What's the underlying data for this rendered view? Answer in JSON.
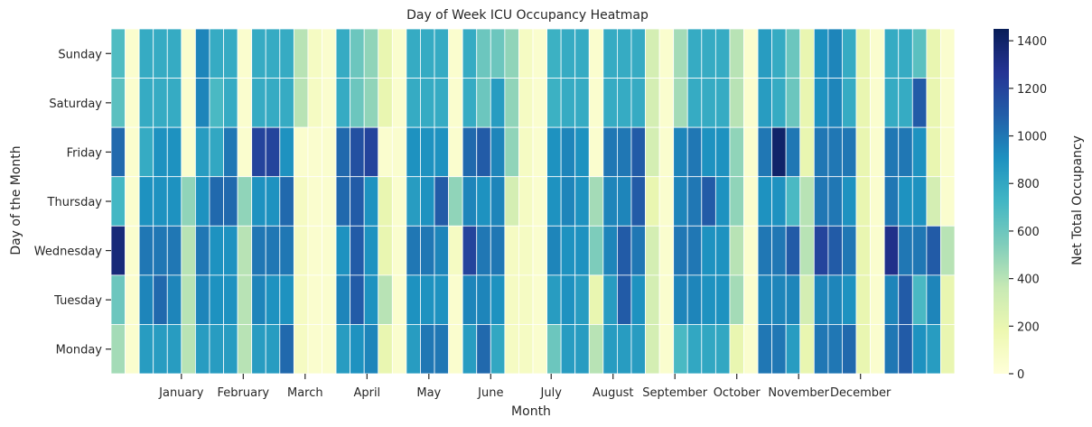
{
  "chart_data": {
    "type": "heatmap",
    "title": "Day of Week ICU Occupancy Heatmap",
    "xlabel": "Month",
    "ylabel": "Day of the Month",
    "colorbar_label": "Net Total Occupancy",
    "colorscale": "YlGnBu",
    "vmin": 0,
    "vmax": 1450,
    "colorbar_ticks": [
      0,
      200,
      400,
      600,
      800,
      1000,
      1200,
      1400
    ],
    "rows": [
      "Sunday",
      "Saturday",
      "Friday",
      "Thursday",
      "Wednesday",
      "Tuesday",
      "Monday"
    ],
    "x_ticks": [
      "January",
      "February",
      "March",
      "April",
      "May",
      "June",
      "July",
      "August",
      "September",
      "October",
      "November",
      "December"
    ],
    "x_tick_weeks": [
      5,
      9.4,
      13.8,
      18.2,
      22.6,
      27,
      31.3,
      35.7,
      40.1,
      44.5,
      48.9,
      53.3
    ],
    "weeks": 60,
    "values": [
      [
        680,
        50,
        780,
        780,
        780,
        50,
        950,
        780,
        780,
        50,
        780,
        780,
        780,
        400,
        100,
        50,
        780,
        600,
        500,
        200,
        50,
        780,
        780,
        780,
        50,
        780,
        600,
        600,
        500,
        100,
        50,
        750,
        780,
        780,
        50,
        780,
        780,
        780,
        300,
        50,
        450,
        780,
        780,
        780,
        400,
        50,
        850,
        780,
        600,
        200,
        900,
        950,
        780,
        200,
        50,
        780,
        780,
        650,
        200,
        50
      ],
      [
        650,
        50,
        780,
        780,
        780,
        50,
        950,
        700,
        780,
        50,
        780,
        780,
        780,
        400,
        100,
        50,
        780,
        600,
        500,
        200,
        50,
        780,
        780,
        780,
        50,
        780,
        600,
        850,
        500,
        100,
        50,
        750,
        780,
        780,
        50,
        780,
        780,
        780,
        300,
        50,
        450,
        780,
        780,
        780,
        400,
        50,
        850,
        780,
        600,
        200,
        900,
        950,
        780,
        200,
        50,
        780,
        780,
        1100,
        200,
        50
      ],
      [
        1050,
        50,
        780,
        900,
        900,
        50,
        850,
        800,
        1000,
        50,
        1200,
        1200,
        900,
        50,
        50,
        50,
        1050,
        1150,
        1200,
        50,
        50,
        900,
        900,
        900,
        50,
        1050,
        1100,
        950,
        500,
        100,
        50,
        900,
        950,
        900,
        50,
        1000,
        1000,
        1100,
        300,
        50,
        950,
        1000,
        900,
        900,
        500,
        50,
        1000,
        1400,
        1000,
        200,
        1000,
        1000,
        1000,
        200,
        50,
        1000,
        1000,
        900,
        200,
        50
      ],
      [
        720,
        50,
        900,
        900,
        900,
        500,
        900,
        1050,
        1050,
        500,
        900,
        900,
        1050,
        100,
        50,
        50,
        1050,
        1100,
        900,
        200,
        50,
        850,
        900,
        1100,
        500,
        950,
        900,
        950,
        300,
        100,
        50,
        900,
        950,
        900,
        450,
        950,
        950,
        1100,
        200,
        50,
        950,
        1000,
        1100,
        900,
        500,
        50,
        900,
        900,
        700,
        400,
        1000,
        1000,
        900,
        200,
        50,
        1000,
        900,
        900,
        300,
        50
      ],
      [
        1350,
        50,
        1000,
        1000,
        1000,
        400,
        1000,
        900,
        900,
        400,
        1000,
        1000,
        1000,
        100,
        50,
        50,
        900,
        1100,
        900,
        200,
        50,
        1000,
        1000,
        950,
        100,
        1200,
        1000,
        1000,
        100,
        100,
        50,
        950,
        900,
        900,
        550,
        950,
        1100,
        1000,
        300,
        50,
        1000,
        1000,
        900,
        900,
        400,
        50,
        1000,
        1000,
        1100,
        400,
        1200,
        1100,
        1000,
        200,
        50,
        1300,
        1000,
        1000,
        1100,
        400
      ],
      [
        600,
        50,
        950,
        1050,
        950,
        400,
        950,
        900,
        900,
        400,
        950,
        900,
        900,
        100,
        50,
        50,
        950,
        1100,
        900,
        400,
        50,
        900,
        900,
        900,
        50,
        950,
        950,
        900,
        100,
        100,
        50,
        850,
        900,
        850,
        200,
        850,
        1100,
        900,
        300,
        50,
        950,
        950,
        900,
        900,
        450,
        50,
        950,
        950,
        950,
        300,
        950,
        950,
        900,
        200,
        50,
        950,
        1100,
        700,
        950,
        200
      ],
      [
        450,
        50,
        850,
        850,
        850,
        400,
        850,
        850,
        850,
        400,
        850,
        850,
        1050,
        100,
        50,
        50,
        850,
        900,
        950,
        200,
        50,
        850,
        1000,
        1000,
        50,
        850,
        1050,
        800,
        100,
        100,
        50,
        600,
        850,
        850,
        400,
        850,
        850,
        850,
        300,
        50,
        700,
        800,
        800,
        800,
        200,
        50,
        1000,
        1000,
        850,
        200,
        1000,
        1000,
        1050,
        200,
        50,
        1000,
        1100,
        900,
        850,
        200
      ]
    ]
  }
}
